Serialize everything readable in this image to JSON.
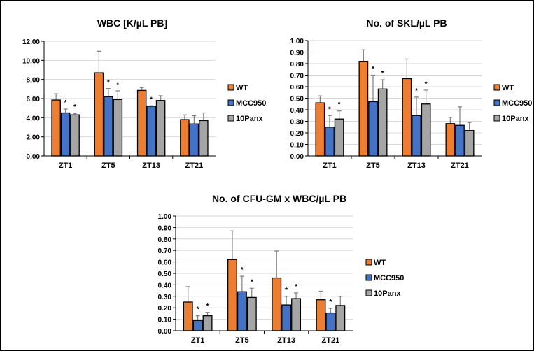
{
  "chart_data": [
    {
      "type": "bar",
      "title": "WBC [K/µL PB]",
      "categories": [
        "ZT1",
        "ZT5",
        "ZT13",
        "ZT21"
      ],
      "ylim": [
        0,
        12
      ],
      "yticks": [
        "0.00",
        "2.00",
        "4.00",
        "6.00",
        "8.00",
        "10.00",
        "12.00"
      ],
      "ytick_values": [
        0,
        2,
        4,
        6,
        8,
        10,
        12
      ],
      "grid": true,
      "legend_placement": "right",
      "series": [
        {
          "name": "WT",
          "color": "#ED7D31",
          "values": [
            5.85,
            8.7,
            6.85,
            3.8
          ],
          "error_top": [
            6.5,
            10.95,
            7.15,
            4.3
          ],
          "significant": [
            false,
            false,
            false,
            false
          ]
        },
        {
          "name": "MCC950",
          "color": "#4472C4",
          "values": [
            4.5,
            6.2,
            5.2,
            3.35
          ],
          "error_top": [
            4.9,
            7.05,
            5.25,
            4.2
          ],
          "significant": [
            true,
            true,
            true,
            false
          ]
        },
        {
          "name": "10Panx",
          "color": "#A5A5A5",
          "values": [
            4.3,
            5.9,
            5.8,
            3.7
          ],
          "error_top": [
            4.45,
            6.8,
            6.3,
            4.5
          ],
          "significant": [
            true,
            true,
            false,
            false
          ]
        }
      ],
      "star_label": "*"
    },
    {
      "type": "bar",
      "title": "No. of SKL/µL PB",
      "categories": [
        "ZT1",
        "ZT5",
        "ZT13",
        "ZT21"
      ],
      "ylim": [
        0,
        1
      ],
      "yticks": [
        "0.00",
        "0.10",
        "0.20",
        "0.30",
        "0.40",
        "0.50",
        "0.60",
        "0.70",
        "0.80",
        "0.90",
        "1.00"
      ],
      "ytick_values": [
        0,
        0.1,
        0.2,
        0.3,
        0.4,
        0.5,
        0.6,
        0.7,
        0.8,
        0.9,
        1.0
      ],
      "grid": true,
      "legend_placement": "right",
      "series": [
        {
          "name": "WT",
          "color": "#ED7D31",
          "values": [
            0.46,
            0.82,
            0.67,
            0.28
          ],
          "error_top": [
            0.52,
            0.92,
            0.84,
            0.335
          ],
          "significant": [
            false,
            false,
            false,
            false
          ]
        },
        {
          "name": "MCC950",
          "color": "#4472C4",
          "values": [
            0.25,
            0.47,
            0.35,
            0.265
          ],
          "error_top": [
            0.35,
            0.7,
            0.51,
            0.425
          ],
          "significant": [
            true,
            true,
            true,
            false
          ]
        },
        {
          "name": "10Panx",
          "color": "#A5A5A5",
          "values": [
            0.32,
            0.58,
            0.45,
            0.22
          ],
          "error_top": [
            0.39,
            0.66,
            0.57,
            0.29
          ],
          "significant": [
            true,
            true,
            true,
            false
          ]
        }
      ],
      "star_label": "*"
    },
    {
      "type": "bar",
      "title": "No. of CFU-GM x WBC/µL PB",
      "categories": [
        "ZT1",
        "ZT5",
        "ZT13",
        "ZT21"
      ],
      "ylim": [
        0,
        1
      ],
      "yticks": [
        "0.00",
        "0.10",
        "0.20",
        "0.30",
        "0.40",
        "0.50",
        "0.60",
        "0.70",
        "0.80",
        "0.90",
        "1.00"
      ],
      "ytick_values": [
        0,
        0.1,
        0.2,
        0.3,
        0.4,
        0.5,
        0.6,
        0.7,
        0.8,
        0.9,
        1.0
      ],
      "grid": true,
      "legend_placement": "right",
      "series": [
        {
          "name": "WT",
          "color": "#ED7D31",
          "values": [
            0.25,
            0.62,
            0.46,
            0.27
          ],
          "error_top": [
            0.385,
            0.87,
            0.695,
            0.345
          ],
          "significant": [
            false,
            false,
            false,
            false
          ]
        },
        {
          "name": "MCC950",
          "color": "#4472C4",
          "values": [
            0.09,
            0.34,
            0.225,
            0.155
          ],
          "error_top": [
            0.13,
            0.475,
            0.3,
            0.195
          ],
          "significant": [
            true,
            true,
            true,
            true
          ]
        },
        {
          "name": "10Panx",
          "color": "#A5A5A5",
          "values": [
            0.13,
            0.29,
            0.28,
            0.22
          ],
          "error_top": [
            0.16,
            0.37,
            0.33,
            0.3
          ],
          "significant": [
            true,
            true,
            true,
            false
          ]
        }
      ],
      "star_label": "*"
    }
  ]
}
